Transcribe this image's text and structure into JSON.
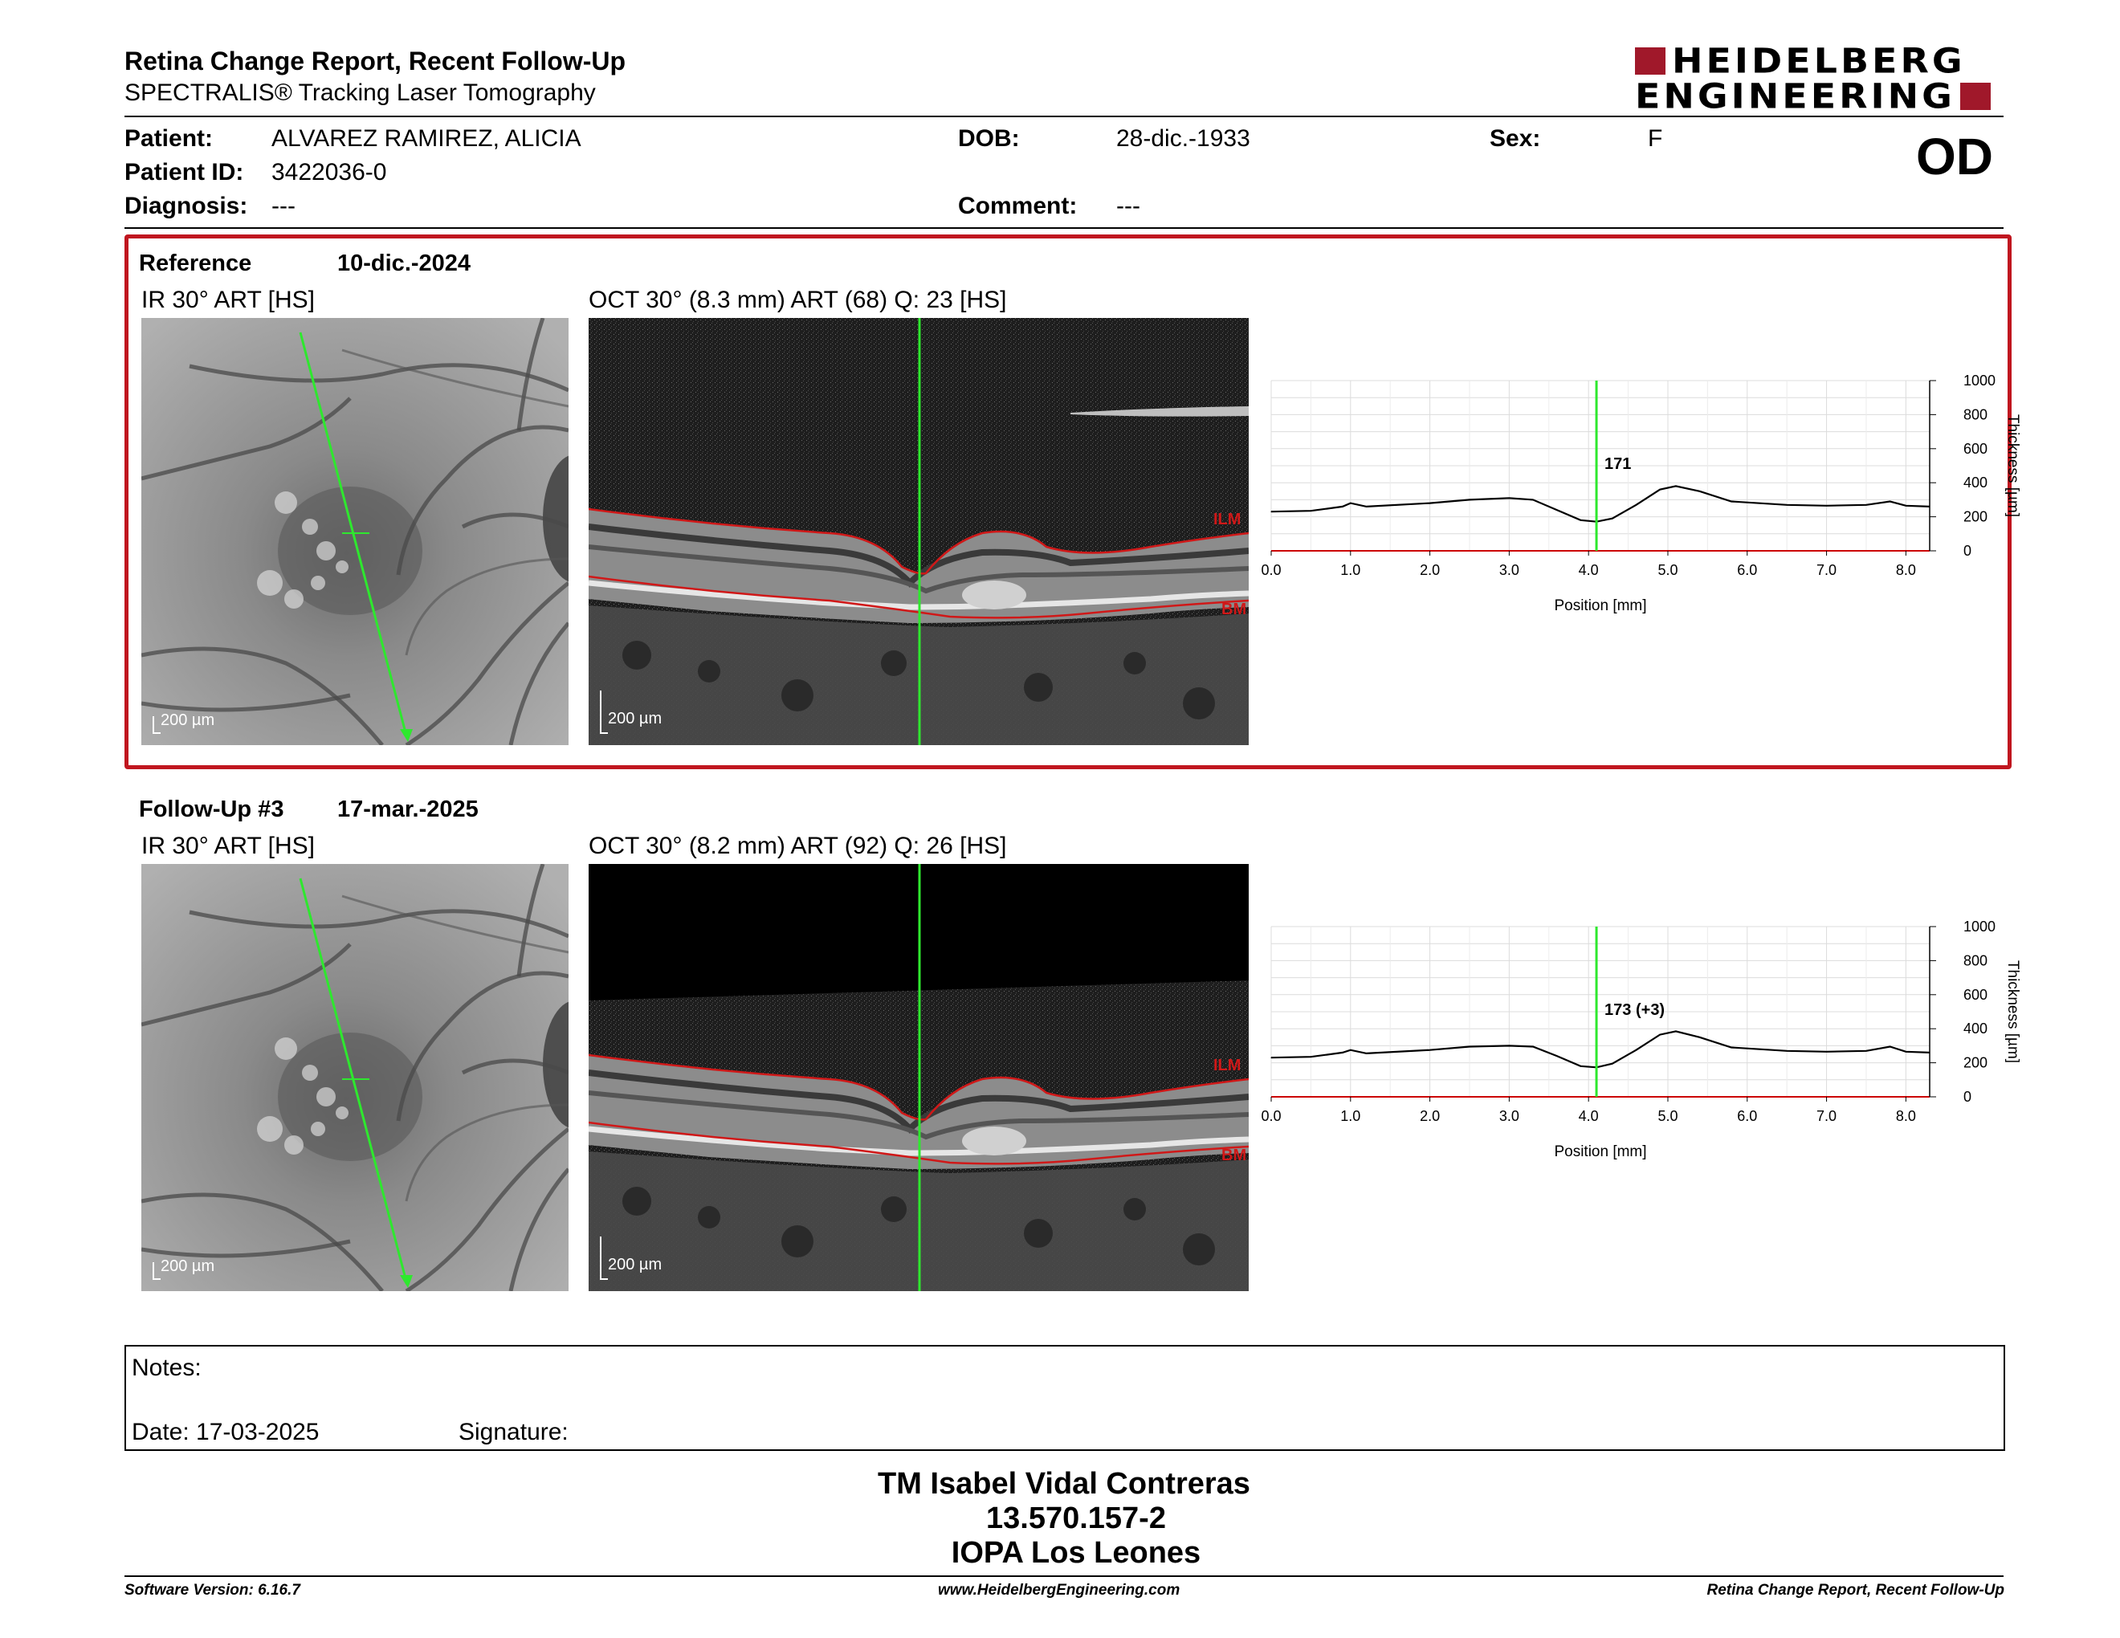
{
  "header": {
    "title": "Retina Change Report, Recent Follow-Up",
    "subtitle": "SPECTRALIS® Tracking Laser Tomography",
    "logo_line1": "HEIDELBERG",
    "logo_line2": "ENGINEERING",
    "eye": "OD"
  },
  "patient": {
    "patient_label": "Patient:",
    "patient_value": "ALVAREZ RAMIREZ, ALICIA",
    "id_label": "Patient ID:",
    "id_value": "3422036-0",
    "diagnosis_label": "Diagnosis:",
    "diagnosis_value": "---",
    "dob_label": "DOB:",
    "dob_value": "28-dic.-1933",
    "comment_label": "Comment:",
    "comment_value": "---",
    "sex_label": "Sex:",
    "sex_value": "F"
  },
  "reference": {
    "label": "Reference",
    "date": "10-dic.-2024",
    "ir_label": "IR 30° ART [HS]",
    "oct_label": "OCT 30° (8.3 mm) ART (68) Q: 23 [HS]",
    "scale_label": "200 µm",
    "ilm": "ILM",
    "bm": "BM",
    "chart": {
      "annotation": "171"
    }
  },
  "followup": {
    "label": "Follow-Up #3",
    "date": "17-mar.-2025",
    "ir_label": "IR 30° ART [HS]",
    "oct_label": "OCT 30° (8.2 mm) ART (92) Q: 26 [HS]",
    "scale_label": "200 µm",
    "ilm": "ILM",
    "bm": "BM",
    "chart": {
      "annotation": "173 (+3)"
    }
  },
  "chart_data": [
    {
      "type": "line",
      "xlabel": "Position [mm]",
      "ylabel": "Thickness [µm]",
      "xlim": [
        0,
        8.3
      ],
      "ylim": [
        0,
        1000
      ],
      "x_ticks": [
        "0.0",
        "1.0",
        "2.0",
        "3.0",
        "4.0",
        "5.0",
        "6.0",
        "7.0",
        "8.0"
      ],
      "y_ticks": [
        "0",
        "200",
        "400",
        "600",
        "800",
        "1000"
      ],
      "marker_x": 4.1,
      "marker_value": "171",
      "series": [
        {
          "x": [
            0.0,
            0.5,
            0.9,
            1.0,
            1.2,
            2.0,
            2.5,
            3.0,
            3.3,
            3.6,
            3.9,
            4.1,
            4.3,
            4.6,
            4.9,
            5.1,
            5.4,
            5.8,
            6.5,
            7.0,
            7.5,
            7.8,
            8.0,
            8.3
          ],
          "y": [
            230,
            235,
            260,
            280,
            260,
            280,
            300,
            310,
            300,
            240,
            180,
            171,
            190,
            270,
            360,
            380,
            350,
            290,
            270,
            265,
            270,
            290,
            265,
            260
          ],
          "color": "#000000"
        }
      ]
    },
    {
      "type": "line",
      "xlabel": "Position [mm]",
      "ylabel": "Thickness [µm]",
      "xlim": [
        0,
        8.3
      ],
      "ylim": [
        0,
        1000
      ],
      "x_ticks": [
        "0.0",
        "1.0",
        "2.0",
        "3.0",
        "4.0",
        "5.0",
        "6.0",
        "7.0",
        "8.0"
      ],
      "y_ticks": [
        "0",
        "200",
        "400",
        "600",
        "800",
        "1000"
      ],
      "marker_x": 4.1,
      "marker_value": "173 (+3)",
      "series": [
        {
          "x": [
            0.0,
            0.5,
            0.9,
            1.0,
            1.2,
            2.0,
            2.5,
            3.0,
            3.3,
            3.6,
            3.9,
            4.1,
            4.3,
            4.6,
            4.9,
            5.1,
            5.4,
            5.8,
            6.5,
            7.0,
            7.5,
            7.8,
            8.0,
            8.3
          ],
          "y": [
            230,
            235,
            260,
            275,
            255,
            275,
            295,
            300,
            295,
            240,
            180,
            173,
            195,
            275,
            365,
            385,
            350,
            290,
            270,
            265,
            270,
            295,
            265,
            260
          ],
          "color": "#000000"
        }
      ]
    }
  ],
  "notes": {
    "notes_label": "Notes:",
    "date_label": "Date: 17-03-2025",
    "signature_label": "Signature:"
  },
  "signature_block": {
    "line1": "TM Isabel Vidal Contreras",
    "line2": "13.570.157-2",
    "line3": "IOPA Los Leones"
  },
  "footer": {
    "software": "Software Version: 6.16.7",
    "website": "www.HeidelbergEngineering.com",
    "report": "Retina Change Report, Recent Follow-Up"
  },
  "colors": {
    "accent_red": "#c0161f",
    "logo_red": "#a0182a",
    "scan_line": "#2ee82e"
  }
}
